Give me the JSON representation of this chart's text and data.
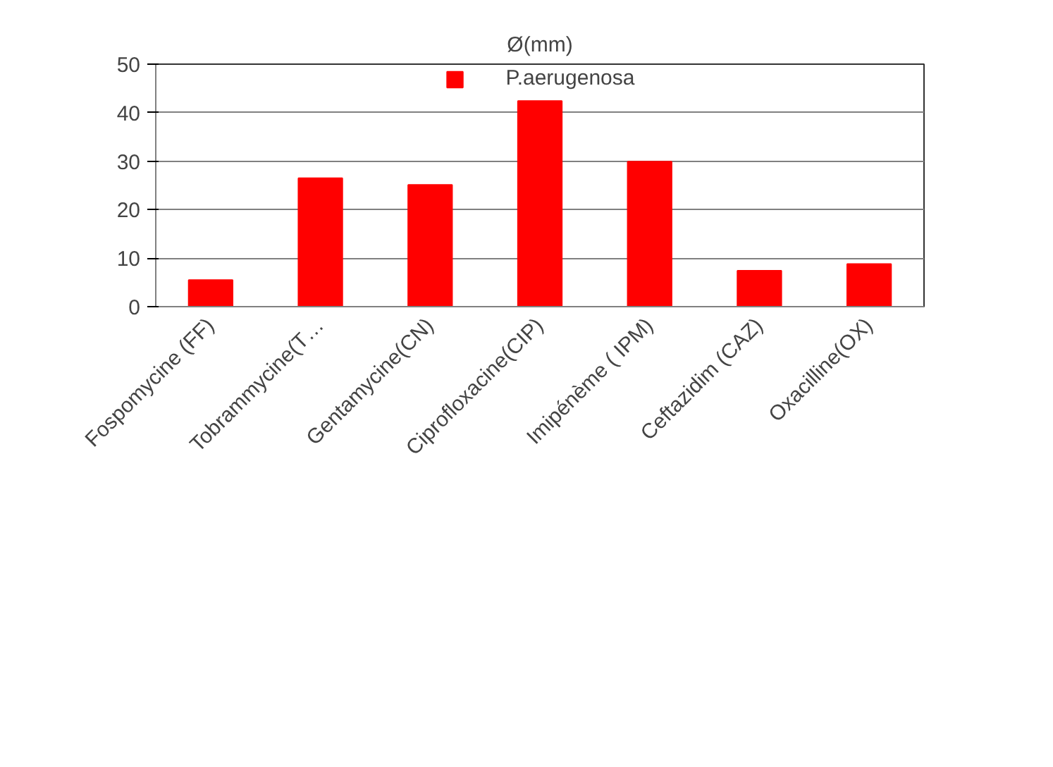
{
  "chart_data": {
    "type": "bar",
    "title": "Ø(mm)",
    "categories": [
      "Fospomycine (FF)",
      "Tobrammycine(T…",
      "Gentamycine(CN)",
      "Ciprofloxacine(CIP)",
      "Imipénème ( IPM)",
      "Ceftazidim (CAZ)",
      "Oxacilline(OX)"
    ],
    "series": [
      {
        "name": "P.aerugenosa",
        "color": "#ff0000",
        "values": [
          5.5,
          26.5,
          25.1,
          42.4,
          29.9,
          7.4,
          8.8
        ]
      }
    ],
    "ylim": [
      0,
      50
    ],
    "yticks": [
      0,
      10,
      20,
      30,
      40,
      50
    ],
    "grid": "y",
    "legend": "top"
  }
}
